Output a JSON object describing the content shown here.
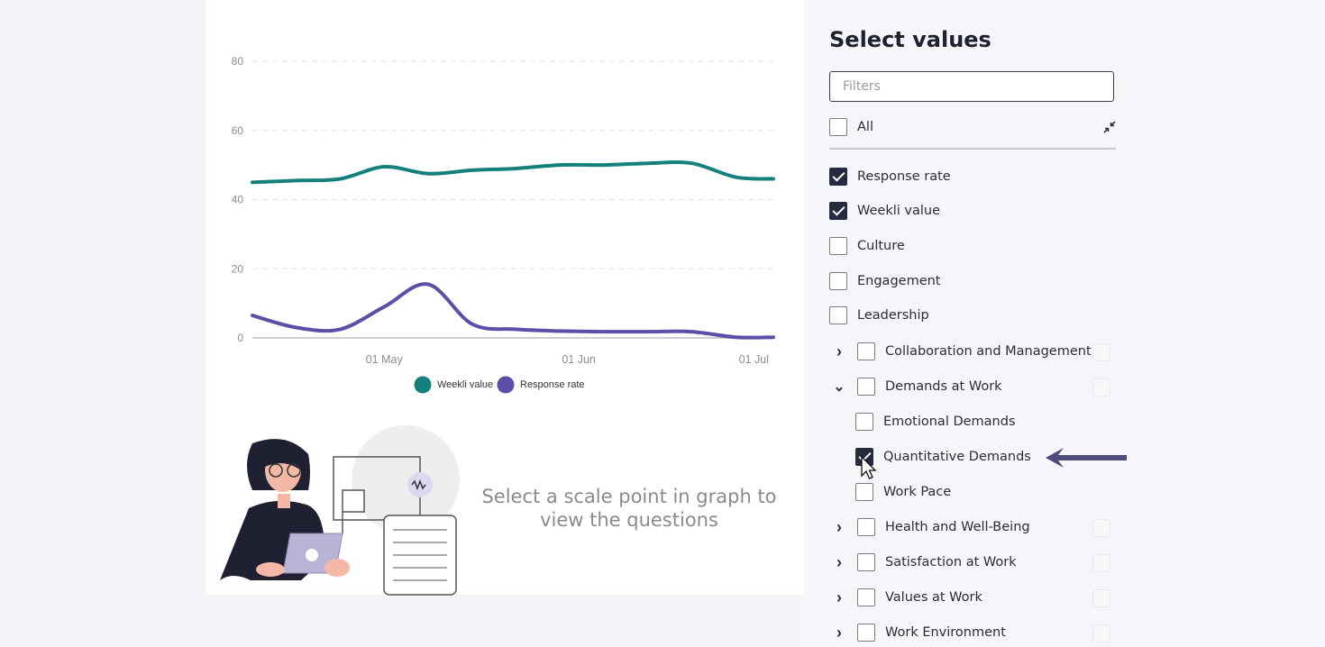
{
  "chart_data": {
    "type": "line",
    "x_ticks": [
      "01 May",
      "01 Jun",
      "01 Jul"
    ],
    "y_ticks": [
      0,
      20,
      40,
      60,
      80
    ],
    "ylim": [
      0,
      80
    ],
    "xlim": [
      "2022-04-10",
      "2022-07-02"
    ],
    "grid": true,
    "legend_position": "bottom",
    "series": [
      {
        "name": "Weekli value",
        "color": "#13807c",
        "x": [
          "2022-04-10",
          "2022-04-17",
          "2022-04-24",
          "2022-05-01",
          "2022-05-08",
          "2022-05-15",
          "2022-05-22",
          "2022-05-29",
          "2022-06-05",
          "2022-06-12",
          "2022-06-19",
          "2022-06-26",
          "2022-07-02"
        ],
        "y": [
          45,
          45.5,
          46,
          49.5,
          47.5,
          48.5,
          49,
          50,
          50,
          50.5,
          50.5,
          46.5,
          46
        ]
      },
      {
        "name": "Response rate",
        "color": "#5b4fa8",
        "x": [
          "2022-04-10",
          "2022-04-17",
          "2022-04-24",
          "2022-05-01",
          "2022-05-08",
          "2022-05-15",
          "2022-05-22",
          "2022-05-29",
          "2022-06-05",
          "2022-06-12",
          "2022-06-19",
          "2022-06-26",
          "2022-07-02"
        ],
        "y": [
          6.5,
          3,
          2.5,
          9,
          15.5,
          4,
          2.5,
          2,
          1.8,
          1.8,
          1.8,
          0.2,
          0.2
        ]
      }
    ]
  },
  "chart": {
    "empty_message": "Select a scale point in graph to view the questions"
  },
  "panel": {
    "title": "Select values",
    "filter_placeholder": "Filters",
    "all_label": "All",
    "items": [
      {
        "label": "Response rate",
        "checked": true
      },
      {
        "label": "Weekli value",
        "checked": true
      },
      {
        "label": "Culture",
        "checked": false
      },
      {
        "label": "Engagement",
        "checked": false
      },
      {
        "label": "Leadership",
        "checked": false
      },
      {
        "label": "Collaboration and Management",
        "checked": false,
        "expander": "collapsed"
      },
      {
        "label": "Demands at Work",
        "checked": false,
        "expander": "expanded"
      },
      {
        "label": "Emotional Demands",
        "checked": false,
        "child": true
      },
      {
        "label": "Quantitative Demands",
        "checked": true,
        "child": true
      },
      {
        "label": "Work Pace",
        "checked": false,
        "child": true
      },
      {
        "label": "Health and Well-Being",
        "checked": false,
        "expander": "collapsed"
      },
      {
        "label": "Satisfaction at Work",
        "checked": false,
        "expander": "collapsed"
      },
      {
        "label": "Values at Work",
        "checked": false,
        "expander": "collapsed"
      },
      {
        "label": "Work Environment",
        "checked": false,
        "expander": "collapsed"
      }
    ]
  },
  "colors": {
    "accent": "#262a3f",
    "arrow": "#4f4b7e"
  }
}
